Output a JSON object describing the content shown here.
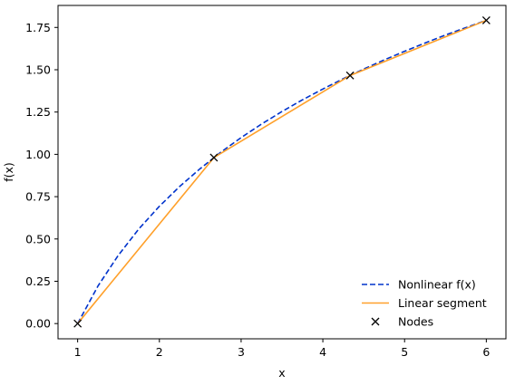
{
  "chart_data": {
    "type": "line",
    "title": "",
    "xlabel": "x",
    "ylabel": "f(x)",
    "xlim": [
      0.76,
      6.24
    ],
    "ylim": [
      -0.09,
      1.88
    ],
    "x_ticks": [
      1,
      2,
      3,
      4,
      5,
      6
    ],
    "x_tick_labels": [
      "1",
      "2",
      "3",
      "4",
      "5",
      "6"
    ],
    "y_ticks": [
      0.0,
      0.25,
      0.5,
      0.75,
      1.0,
      1.25,
      1.5,
      1.75
    ],
    "y_tick_labels": [
      "0.00",
      "0.25",
      "0.50",
      "0.75",
      "1.00",
      "1.25",
      "1.50",
      "1.75"
    ],
    "grid": false,
    "legend_position": "bottom-right",
    "series": [
      {
        "name": "Nonlinear f(x)",
        "style": "dashed",
        "color": "#0033cc",
        "x": [
          1.0,
          1.25,
          1.5,
          1.75,
          2.0,
          2.25,
          2.5,
          2.75,
          3.0,
          3.25,
          3.5,
          3.75,
          4.0,
          4.25,
          4.5,
          4.75,
          5.0,
          5.25,
          5.5,
          5.75,
          6.0
        ],
        "y": [
          0.0,
          0.223,
          0.405,
          0.56,
          0.693,
          0.811,
          0.916,
          1.012,
          1.099,
          1.179,
          1.253,
          1.322,
          1.386,
          1.447,
          1.504,
          1.558,
          1.609,
          1.658,
          1.705,
          1.749,
          1.792
        ]
      },
      {
        "name": "Linear segment",
        "style": "solid",
        "color": "#ffa02a",
        "x": [
          1.0,
          2.667,
          4.333,
          6.0
        ],
        "y": [
          0.0,
          0.981,
          1.466,
          1.792
        ]
      },
      {
        "name": "Nodes",
        "style": "marker-x",
        "color": "#000000",
        "x": [
          1.0,
          2.667,
          4.333,
          6.0
        ],
        "y": [
          0.0,
          0.981,
          1.466,
          1.792
        ]
      }
    ]
  }
}
